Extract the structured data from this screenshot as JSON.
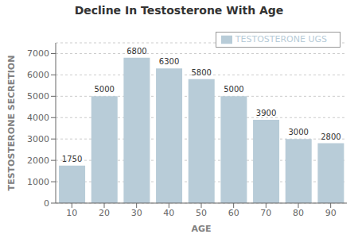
{
  "chart_data": {
    "type": "bar",
    "title": "Decline In Testosterone With Age",
    "xlabel": "AGE",
    "ylabel": "TESTOSTERONE SECRETION",
    "categories": [
      "10",
      "20",
      "30",
      "40",
      "50",
      "60",
      "70",
      "80",
      "90"
    ],
    "series": [
      {
        "name": "TESTOSTERONE UGS",
        "color": "#b8ccd8",
        "values": [
          1750,
          5000,
          6800,
          6300,
          5800,
          5000,
          3900,
          3000,
          2800
        ]
      }
    ],
    "ylim": [
      0,
      7500
    ],
    "yticks": [
      0,
      1000,
      2000,
      3000,
      4000,
      5000,
      6000,
      7000
    ],
    "grid": true,
    "legend": "upper right",
    "data_labels": true
  }
}
